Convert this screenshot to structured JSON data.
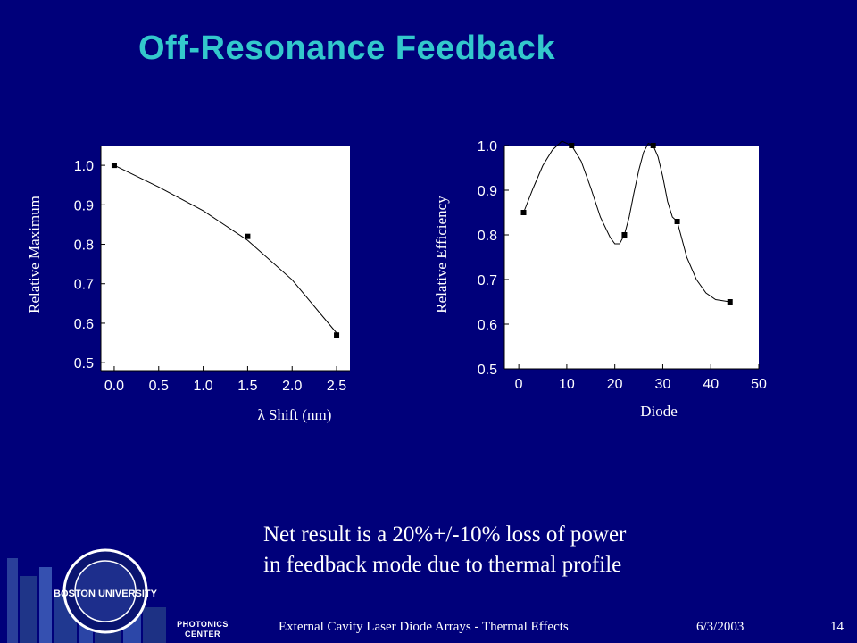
{
  "slide": {
    "title": "Off-Resonance Feedback",
    "body_lines": [
      "Net result is a 20%+/-10% loss of power",
      "in feedback mode due to thermal profile"
    ],
    "footer_title": "External Cavity Laser Diode Arrays - Thermal Effects",
    "footer_date": "6/3/2003",
    "footer_page": "14",
    "logo_text": "BOSTON UNIVERSITY",
    "org_lines": [
      "PHOTONICS",
      "CENTER"
    ]
  },
  "colors": {
    "background": "#00007a",
    "title": "#33c8cc",
    "plot_bg": "#ffffff",
    "text": "#ffffff"
  },
  "chart_data": [
    {
      "type": "scatter",
      "xlabel": "λ Shift (nm)",
      "ylabel": "Relative Maximum",
      "xlim": [
        -0.15,
        2.65
      ],
      "ylim": [
        0.48,
        1.05
      ],
      "xticks": [
        "0.0",
        "0.5",
        "1.0",
        "1.5",
        "2.0",
        "2.5"
      ],
      "yticks": [
        "0.5",
        "0.6",
        "0.7",
        "0.8",
        "0.9",
        "1.0"
      ],
      "points": {
        "x": [
          0.0,
          1.5,
          2.5
        ],
        "y": [
          1.0,
          0.82,
          0.57
        ]
      },
      "curve": {
        "x": [
          0.0,
          0.5,
          1.0,
          1.5,
          2.0,
          2.5
        ],
        "y": [
          1.0,
          0.945,
          0.885,
          0.81,
          0.71,
          0.575
        ]
      }
    },
    {
      "type": "scatter",
      "xlabel": "Diode",
      "ylabel": "Relative Efficiency",
      "xlim": [
        -3,
        50
      ],
      "ylim": [
        0.5,
        1.0
      ],
      "xticks": [
        "0",
        "10",
        "20",
        "30",
        "40",
        "50"
      ],
      "yticks": [
        "0.5",
        "0.6",
        "0.7",
        "0.8",
        "0.9",
        "1.0"
      ],
      "points": {
        "x": [
          1,
          11,
          22,
          28,
          33,
          44
        ],
        "y": [
          0.85,
          1.0,
          0.8,
          1.0,
          0.83,
          0.65
        ]
      },
      "curve": {
        "x": [
          1,
          3,
          5,
          7,
          9,
          11,
          13,
          15,
          17,
          19,
          20,
          21,
          22,
          23,
          24,
          25,
          26,
          27,
          28,
          29,
          30,
          31,
          32,
          33,
          35,
          37,
          39,
          41,
          44
        ],
        "y": [
          0.85,
          0.905,
          0.955,
          0.99,
          1.01,
          1.0,
          0.965,
          0.905,
          0.84,
          0.795,
          0.78,
          0.78,
          0.8,
          0.84,
          0.895,
          0.945,
          0.985,
          1.005,
          1.0,
          0.975,
          0.93,
          0.875,
          0.84,
          0.83,
          0.75,
          0.7,
          0.67,
          0.655,
          0.65
        ]
      }
    }
  ]
}
